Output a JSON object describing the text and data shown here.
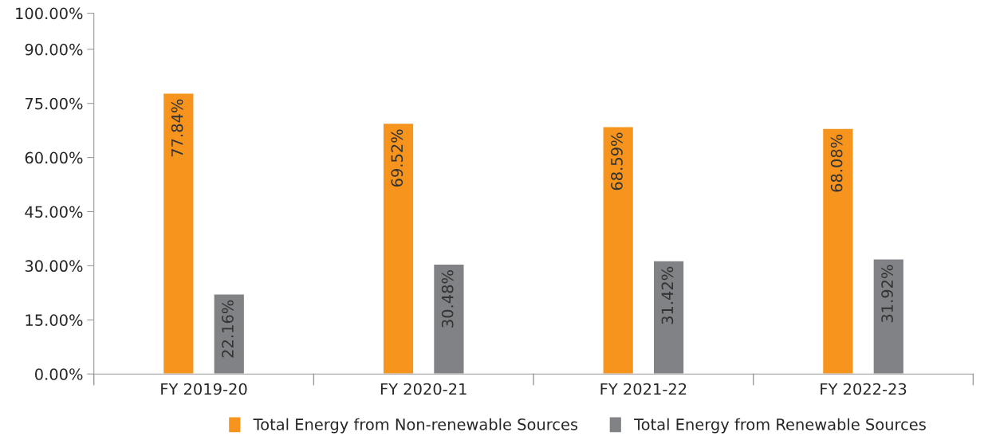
{
  "chart_data": {
    "type": "bar",
    "categories": [
      "FY 2019-20",
      "FY 2020-21",
      "FY 2021-22",
      "FY 2022-23"
    ],
    "series": [
      {
        "name": "Total Energy from Non-renewable Sources",
        "color": "#f7941d",
        "values": [
          77.84,
          69.52,
          68.59,
          68.08
        ]
      },
      {
        "name": "Total Energy from Renewable Sources",
        "color": "#808285",
        "values": [
          22.16,
          30.48,
          31.42,
          31.92
        ]
      }
    ],
    "ylim": [
      0,
      100
    ],
    "yticks": [
      {
        "value": 0,
        "label": "0.00%"
      },
      {
        "value": 15,
        "label": "15.00%"
      },
      {
        "value": 30,
        "label": "30.00%"
      },
      {
        "value": 45,
        "label": "45.00%"
      },
      {
        "value": 60,
        "label": "60.00%"
      },
      {
        "value": 75,
        "label": "75.00%"
      },
      {
        "value": 90,
        "label": "90.00%"
      },
      {
        "value": 100,
        "label": "100.00%"
      }
    ],
    "value_labels": [
      [
        "77.84%",
        "69.52%",
        "68.59%",
        "68.08%"
      ],
      [
        "22.16%",
        "30.48%",
        "31.42%",
        "31.92%"
      ]
    ],
    "legend": "bottom",
    "grid": false
  }
}
